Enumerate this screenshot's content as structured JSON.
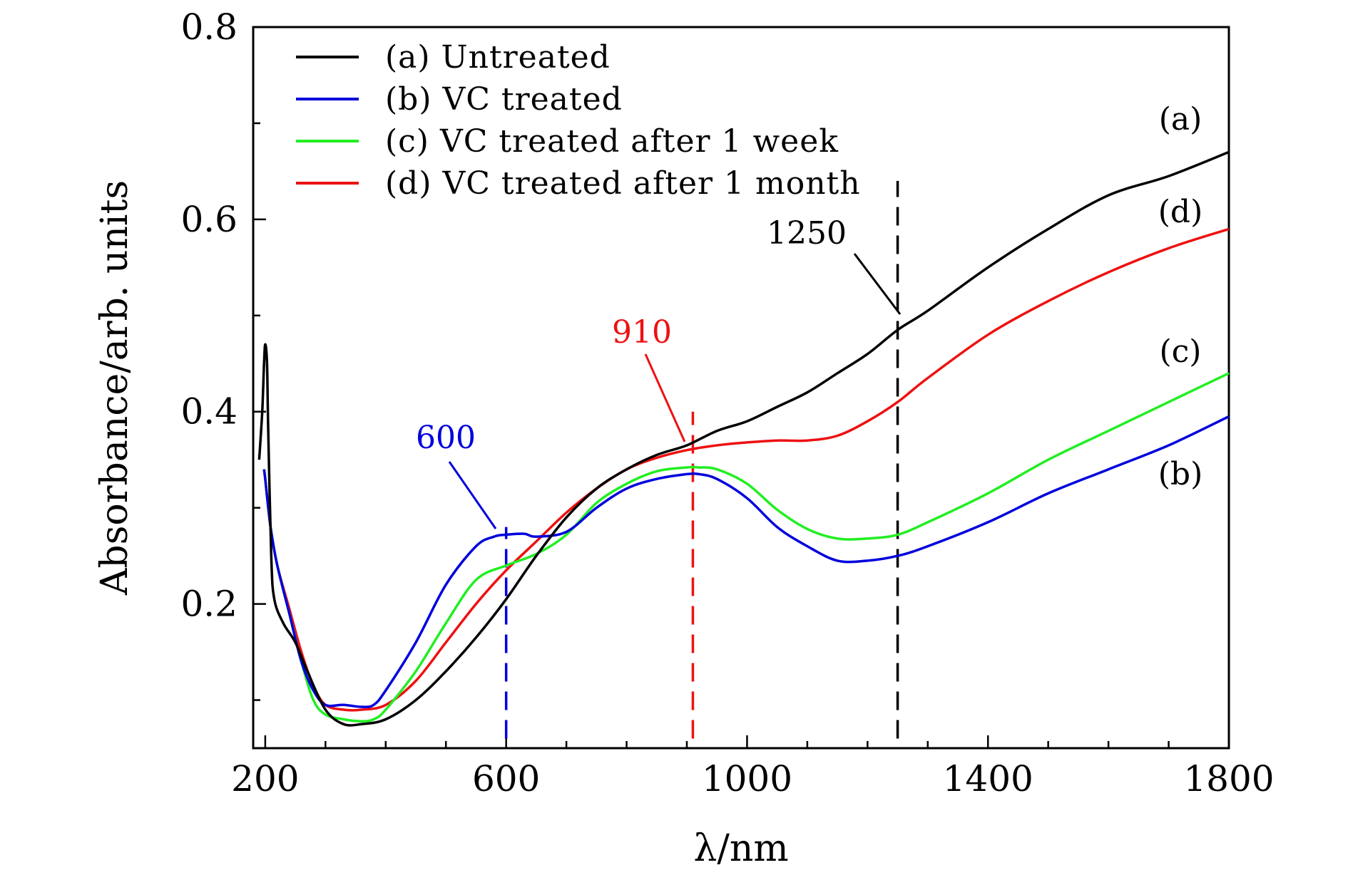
{
  "chart_data": {
    "type": "line",
    "title": "",
    "xlabel": "λ/nm",
    "ylabel": "Absorbance/arb. units",
    "xlim": [
      180,
      1800
    ],
    "ylim": [
      0.05,
      0.8
    ],
    "xticks": [
      200,
      600,
      1000,
      1400,
      1800
    ],
    "yticks": [
      0.2,
      0.4,
      0.6,
      0.8
    ],
    "xtick_labels": [
      "200",
      "600",
      "1000",
      "1400",
      "1800"
    ],
    "ytick_labels": [
      "0.2",
      "0.4",
      "0.6",
      "0.8"
    ],
    "grid": false,
    "legend_position": "top-left",
    "series": [
      {
        "name": "(a) Untreated",
        "tag": "(a)",
        "color": "#000000",
        "x": [
          190,
          195,
          198,
          200,
          203,
          205,
          210,
          215,
          230,
          250,
          270,
          300,
          330,
          360,
          400,
          450,
          500,
          550,
          600,
          650,
          700,
          750,
          800,
          850,
          900,
          950,
          1000,
          1050,
          1100,
          1150,
          1200,
          1250,
          1300,
          1400,
          1500,
          1600,
          1700,
          1800
        ],
        "y": [
          0.35,
          0.4,
          0.45,
          0.47,
          0.45,
          0.38,
          0.25,
          0.205,
          0.18,
          0.16,
          0.13,
          0.09,
          0.075,
          0.075,
          0.08,
          0.1,
          0.13,
          0.165,
          0.205,
          0.25,
          0.29,
          0.32,
          0.34,
          0.355,
          0.365,
          0.38,
          0.39,
          0.405,
          0.42,
          0.44,
          0.46,
          0.485,
          0.505,
          0.55,
          0.59,
          0.625,
          0.645,
          0.67
        ]
      },
      {
        "name": "(b) VC treated",
        "tag": "(b)",
        "color": "#0000dd",
        "x": [
          198,
          200,
          205,
          210,
          220,
          240,
          260,
          280,
          300,
          330,
          360,
          380,
          400,
          450,
          500,
          550,
          580,
          600,
          630,
          650,
          700,
          750,
          800,
          850,
          900,
          920,
          950,
          1000,
          1050,
          1100,
          1150,
          1200,
          1250,
          1300,
          1400,
          1500,
          1600,
          1700,
          1800
        ],
        "y": [
          0.34,
          0.33,
          0.3,
          0.275,
          0.24,
          0.19,
          0.14,
          0.11,
          0.095,
          0.095,
          0.093,
          0.095,
          0.11,
          0.16,
          0.22,
          0.26,
          0.27,
          0.272,
          0.273,
          0.27,
          0.275,
          0.3,
          0.32,
          0.33,
          0.335,
          0.335,
          0.33,
          0.31,
          0.28,
          0.26,
          0.245,
          0.245,
          0.25,
          0.26,
          0.285,
          0.315,
          0.34,
          0.365,
          0.395
        ]
      },
      {
        "name": "(c) VC treated after 1 week",
        "tag": "(c)",
        "color": "#22ee22",
        "x": [
          198,
          200,
          205,
          210,
          220,
          240,
          260,
          280,
          300,
          330,
          360,
          380,
          400,
          450,
          500,
          550,
          600,
          650,
          700,
          750,
          800,
          850,
          900,
          920,
          950,
          1000,
          1050,
          1100,
          1150,
          1200,
          1250,
          1300,
          1400,
          1500,
          1600,
          1700,
          1800
        ],
        "y": [
          0.34,
          0.33,
          0.3,
          0.275,
          0.24,
          0.19,
          0.14,
          0.1,
          0.085,
          0.08,
          0.078,
          0.08,
          0.09,
          0.13,
          0.18,
          0.225,
          0.24,
          0.252,
          0.272,
          0.305,
          0.325,
          0.338,
          0.342,
          0.342,
          0.34,
          0.325,
          0.298,
          0.278,
          0.268,
          0.268,
          0.272,
          0.285,
          0.315,
          0.35,
          0.38,
          0.41,
          0.44
        ]
      },
      {
        "name": "(d) VC treated after 1 month",
        "tag": "(d)",
        "color": "#ee1111",
        "x": [
          198,
          200,
          205,
          210,
          220,
          240,
          260,
          280,
          300,
          330,
          360,
          400,
          450,
          500,
          550,
          600,
          650,
          700,
          750,
          800,
          850,
          900,
          950,
          1000,
          1050,
          1100,
          1150,
          1200,
          1250,
          1300,
          1400,
          1500,
          1600,
          1700,
          1800
        ],
        "y": [
          0.34,
          0.33,
          0.3,
          0.275,
          0.24,
          0.195,
          0.15,
          0.115,
          0.095,
          0.09,
          0.09,
          0.095,
          0.12,
          0.16,
          0.2,
          0.235,
          0.265,
          0.295,
          0.32,
          0.34,
          0.352,
          0.36,
          0.365,
          0.368,
          0.37,
          0.37,
          0.375,
          0.39,
          0.41,
          0.435,
          0.48,
          0.515,
          0.545,
          0.57,
          0.59
        ]
      }
    ],
    "markers": [
      {
        "x": 600,
        "label": "600",
        "color": "#0000dd",
        "y_from": 0.06,
        "y_to": 0.28
      },
      {
        "x": 910,
        "label": "910",
        "color": "#ee1111",
        "y_from": 0.06,
        "y_to": 0.4
      },
      {
        "x": 1250,
        "label": "1250",
        "color": "#000000",
        "y_from": 0.06,
        "y_to": 0.64
      }
    ]
  }
}
